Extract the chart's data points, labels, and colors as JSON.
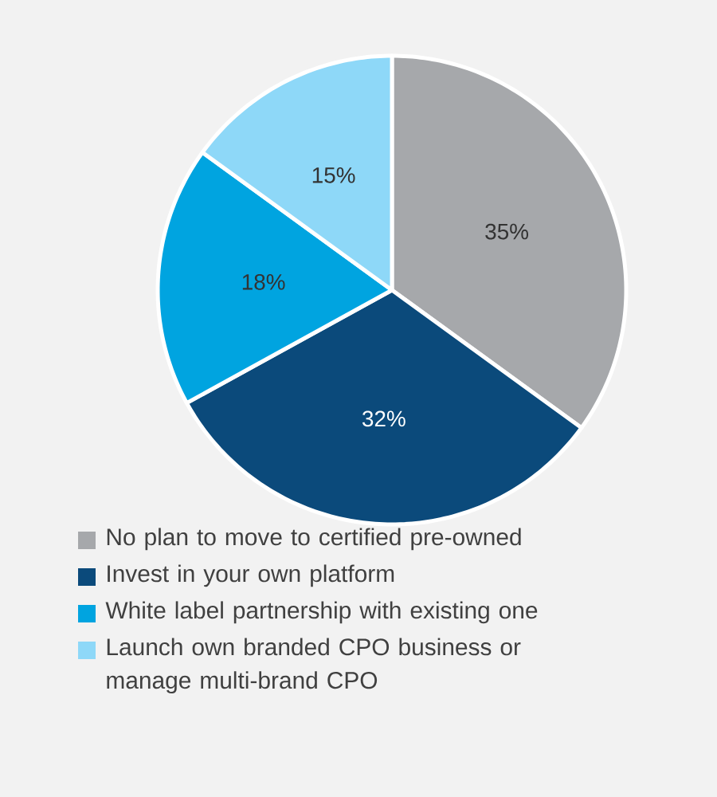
{
  "chart_data": {
    "type": "pie",
    "categories": [
      "No plan to move to certified pre-owned",
      "Invest in your own platform",
      "White label partnership with existing one",
      "Launch own branded CPO business or manage multi-brand CPO"
    ],
    "values": [
      35,
      32,
      18,
      15
    ],
    "value_labels": [
      "35%",
      "32%",
      "18%",
      "15%"
    ],
    "colors": [
      "#a6a8ab",
      "#0b4a7b",
      "#00a4e0",
      "#8ed8f8"
    ],
    "legend": "bottom"
  }
}
